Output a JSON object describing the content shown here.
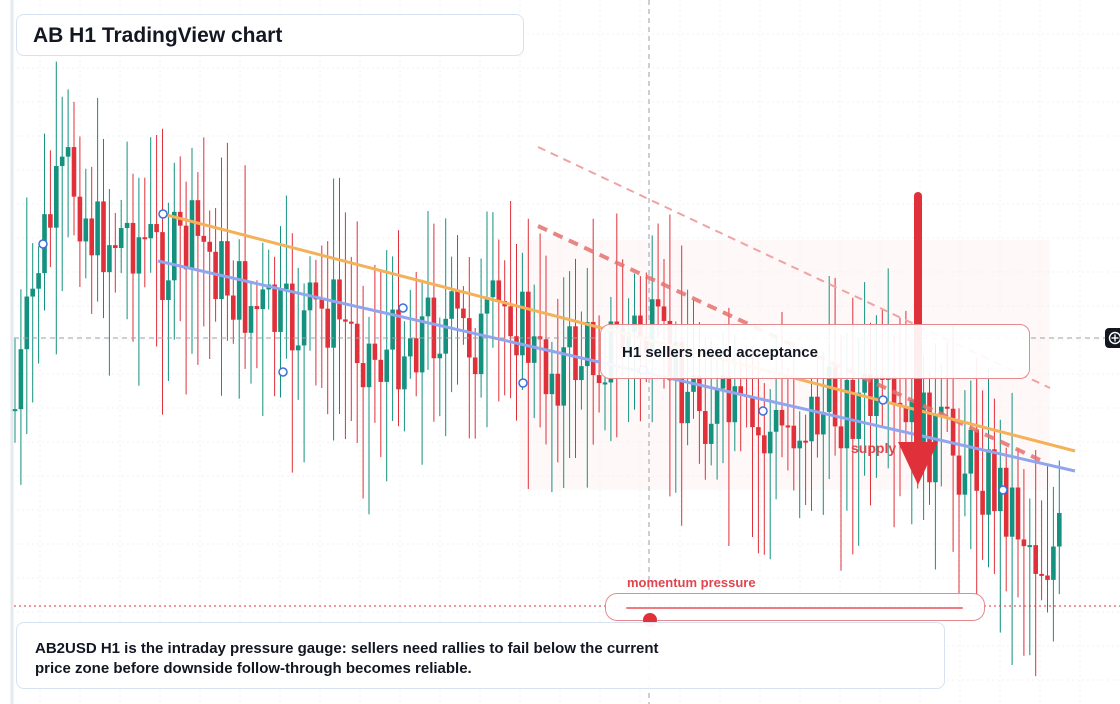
{
  "title": "AB H1 TradingView chart",
  "callout": {
    "text": "H1 sellers need acceptance"
  },
  "zone_label": "supply",
  "gauge": {
    "label": "momentum pressure",
    "level": 0.07
  },
  "caption": "AB2USD H1 is the intraday pressure gauge: sellers need rallies to fail below the current price zone before downside follow-through becomes reliable.",
  "colors": {
    "up": "#14917f",
    "down": "#e0303a",
    "orange_trend": "#f3b15a",
    "blue_trend": "#8fa6ee",
    "bear_channel": "#e6716f",
    "arrow": "#e0303a"
  },
  "icons": {
    "crosshair": "crosshair-plus-icon"
  },
  "chart_data": {
    "type": "candlestick",
    "timeframe": "H1",
    "grid": true,
    "axes_labels": false,
    "current_price_line": true,
    "series": [
      {
        "name": "",
        "kind": "trendline",
        "color": "orange",
        "from_bar": 0.19,
        "to_bar": 1.0,
        "direction": "falling"
      },
      {
        "name": "",
        "kind": "trendline",
        "color": "blue",
        "from_bar": 0.17,
        "to_bar": 1.0,
        "direction": "falling"
      }
    ],
    "annotations": [
      "H1 sellers need acceptance",
      "supply",
      "momentum pressure"
    ]
  }
}
